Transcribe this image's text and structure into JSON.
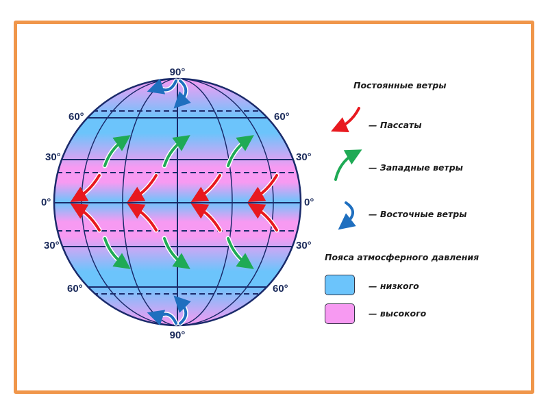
{
  "globe": {
    "labels": {
      "north_pole": "90°",
      "south_pole": "90°",
      "n60_left": "60°",
      "n60_right": "60°",
      "n30_left": "30°",
      "n30_right": "30°",
      "eq_left": "0°",
      "eq_right": "0°",
      "s30_left": "30°",
      "s30_right": "30°",
      "s60_left": "60°",
      "s60_right": "60°"
    }
  },
  "legend": {
    "winds_title": "Постоянные ветры",
    "trade_winds": "— Пассаты",
    "westerlies": "— Западные ветры",
    "easterlies": "— Восточные ветры",
    "pressure_title": "Пояса атмосферного давления",
    "low": "— низкого",
    "high": "— высокого"
  },
  "colors": {
    "frame": "#f0964a",
    "low_pressure": "#6cc4fb",
    "high_pressure": "#f79af2",
    "trade_winds": "#e8191f",
    "westerlies": "#1faa55",
    "easterlies": "#1f6fbf",
    "grid": "#1a2a6a"
  }
}
